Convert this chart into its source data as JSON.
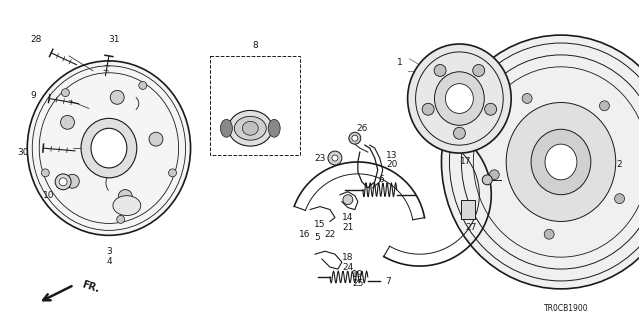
{
  "part_code": "TR0CB1900",
  "background_color": "#ffffff",
  "line_color": "#1a1a1a",
  "fig_width": 6.4,
  "fig_height": 3.2,
  "dpi": 100
}
